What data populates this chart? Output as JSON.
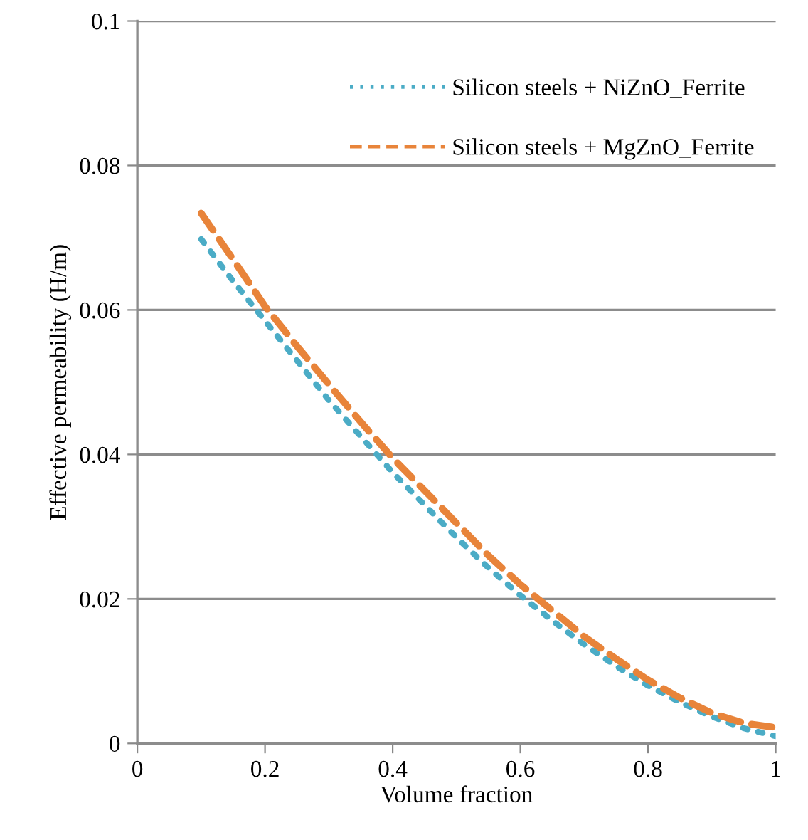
{
  "chart_data": {
    "type": "line",
    "xlabel": "Volume fraction",
    "ylabel": "Effective permeability (H/m)",
    "x": [
      0.1,
      0.15,
      0.2,
      0.25,
      0.3,
      0.35,
      0.4,
      0.45,
      0.5,
      0.55,
      0.6,
      0.65,
      0.7,
      0.75,
      0.8,
      0.85,
      0.9,
      0.95,
      1.0
    ],
    "series": [
      {
        "name": "Silicon steels + NiZnO_Ferrite",
        "color": "#4bacc6",
        "line_style": "dotted",
        "values": [
          0.0698,
          0.064,
          0.0585,
          0.053,
          0.0475,
          0.0425,
          0.0375,
          0.033,
          0.0285,
          0.0243,
          0.0205,
          0.017,
          0.0137,
          0.0107,
          0.008,
          0.0057,
          0.0037,
          0.0021,
          0.001
        ]
      },
      {
        "name": "Silicon steels + MgZnO_Ferrite",
        "color": "#e8843a",
        "line_style": "dashed",
        "values": [
          0.0734,
          0.067,
          0.0605,
          0.055,
          0.0497,
          0.0445,
          0.0395,
          0.035,
          0.0305,
          0.026,
          0.022,
          0.0184,
          0.0148,
          0.0117,
          0.0088,
          0.0063,
          0.0042,
          0.0028,
          0.0022
        ]
      }
    ],
    "xlim": [
      0,
      1
    ],
    "xticks": [
      0,
      0.2,
      0.4,
      0.6,
      0.8,
      1
    ],
    "ylim": [
      0,
      0.1
    ],
    "yticks": [
      0,
      0.02,
      0.04,
      0.06,
      0.08,
      0.1
    ],
    "grid": "y",
    "legend": "top right",
    "marker": "none"
  }
}
